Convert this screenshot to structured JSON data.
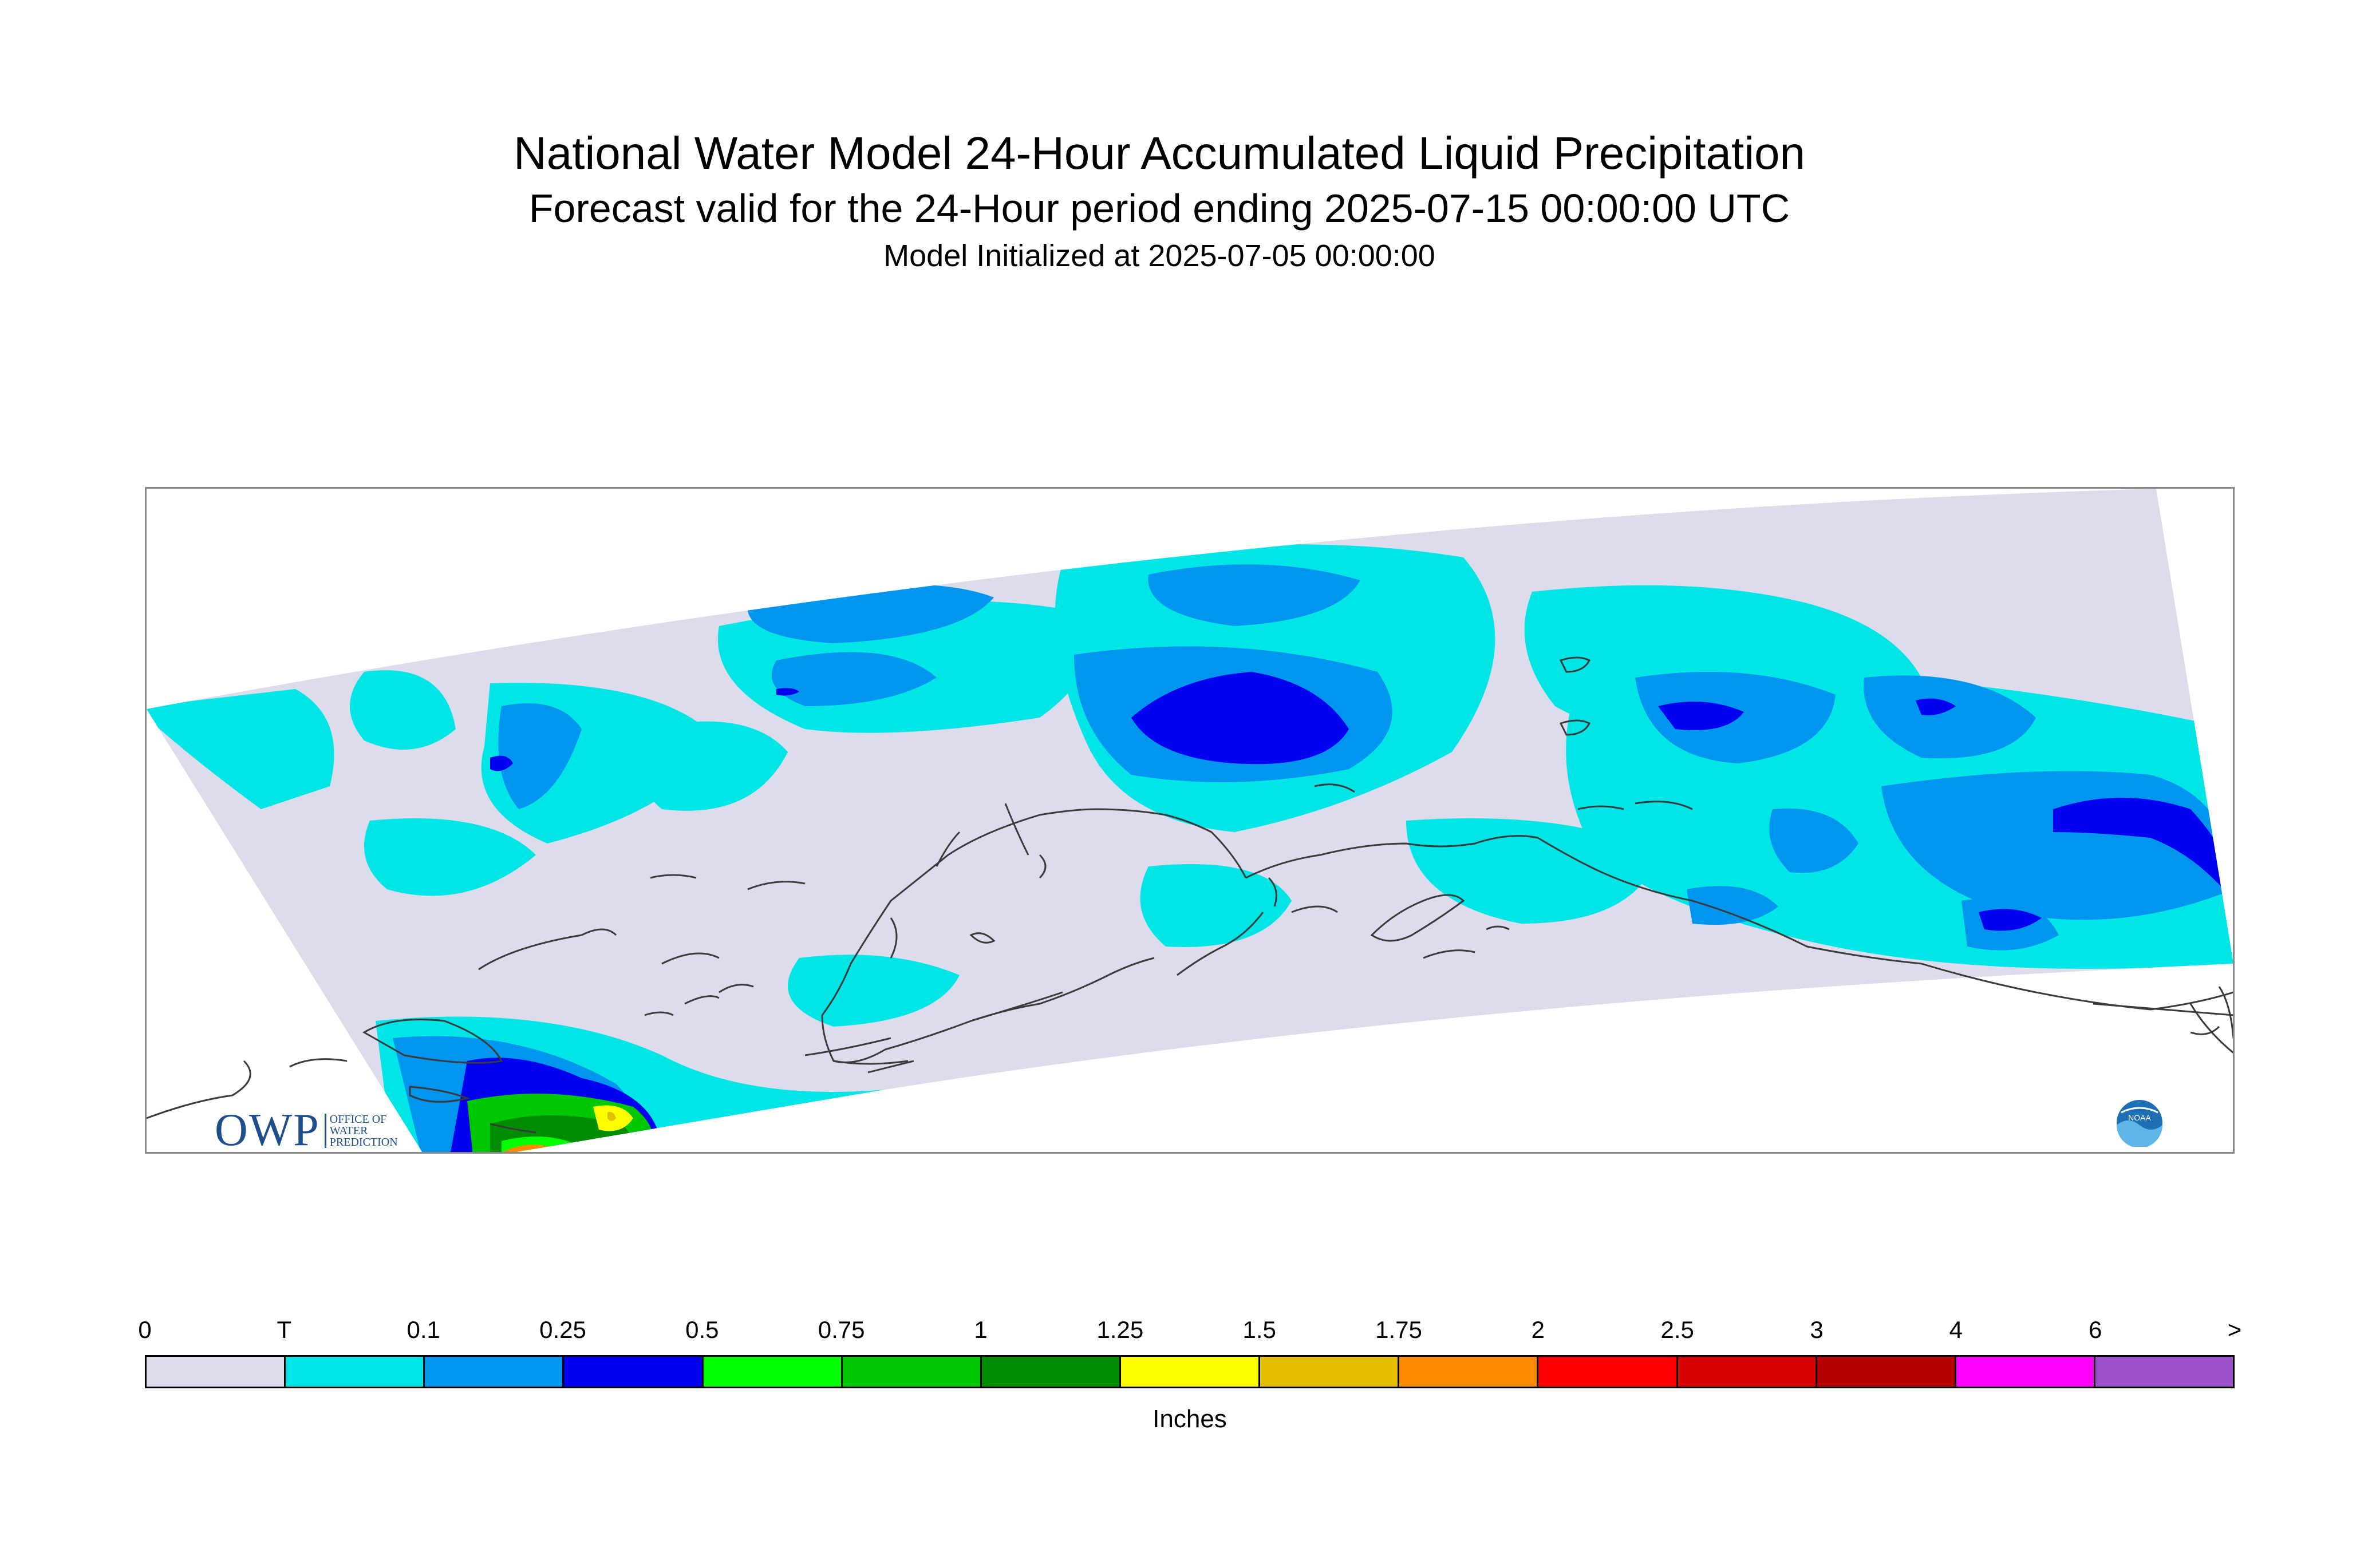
{
  "title": "National Water Model 24-Hour Accumulated Liquid Precipitation",
  "subtitle": "Forecast valid for the 24-Hour period ending 2025-07-15 00:00:00 UTC",
  "init_line": "Model Initialized at 2025-07-05 00:00:00",
  "logos": {
    "owp_main": "OWP",
    "owp_sub_1": "Office of",
    "owp_sub_2": "Water",
    "owp_sub_3": "Prediction",
    "noaa": "NOAA"
  },
  "legend": {
    "units": "Inches",
    "tick_labels": [
      "0",
      "T",
      "0.1",
      "0.25",
      "0.5",
      "0.75",
      "1",
      "1.25",
      "1.5",
      "1.75",
      "2",
      "2.5",
      "3",
      "4",
      "6",
      ">"
    ],
    "colors": [
      "#dcdcec",
      "#00e5e5",
      "#0096f0",
      "#0000f0",
      "#00ff00",
      "#00c800",
      "#008c00",
      "#ffff00",
      "#e6be00",
      "#ff8c00",
      "#ff0000",
      "#d70000",
      "#b40000",
      "#ff00ff",
      "#9b4fc8"
    ]
  },
  "map": {
    "region": "Alaska",
    "background_color": "#dcdcec",
    "coastline_color": "#3a3a3a"
  }
}
